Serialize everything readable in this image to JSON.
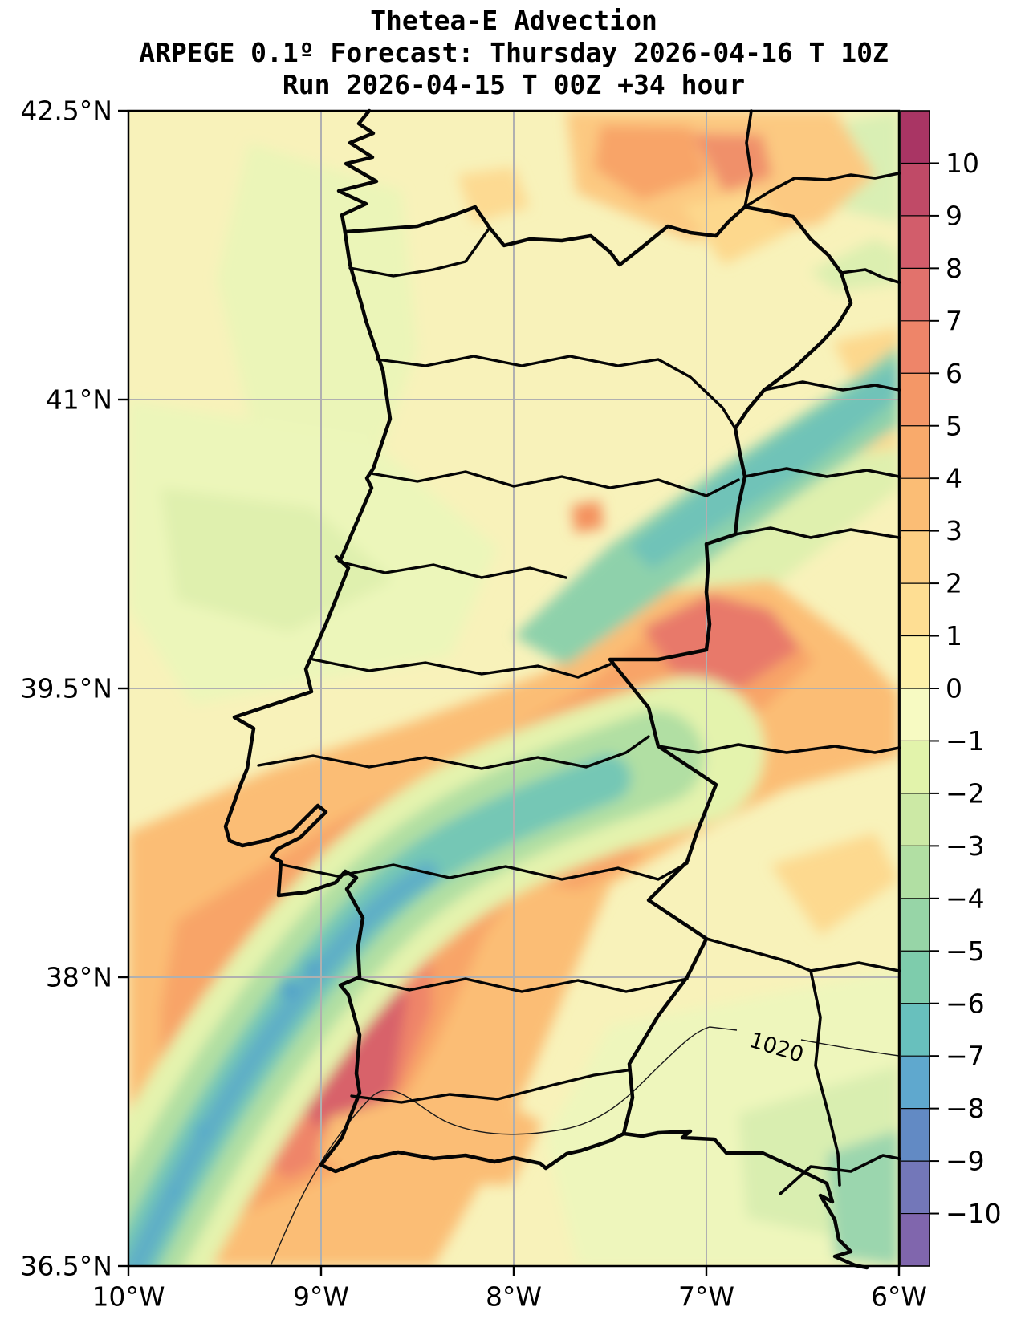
{
  "title": {
    "line1": "Thetea-E Advection",
    "line2": "ARPEGE 0.1º Forecast: Thursday 2026-04-16 T 10Z",
    "line3": "Run 2026-04-15 T 00Z +34 hour"
  },
  "axes": {
    "lat": {
      "labels": [
        "42.5°N",
        "41°N",
        "39.5°N",
        "38°N",
        "36.5°N"
      ],
      "values": [
        42.5,
        41,
        39.5,
        38,
        36.5
      ],
      "gridline_values": [
        41,
        39.5,
        38
      ]
    },
    "lon": {
      "labels": [
        "10°W",
        "9°W",
        "8°W",
        "7°W",
        "6°W"
      ],
      "values": [
        10,
        9,
        8,
        7,
        6
      ],
      "gridline_values": [
        9,
        8,
        7
      ]
    }
  },
  "colorbar": {
    "tick_labels": [
      "10",
      "9",
      "8",
      "7",
      "6",
      "5",
      "4",
      "3",
      "2",
      "1",
      "0",
      "−1",
      "−2",
      "−3",
      "−4",
      "−5",
      "−6",
      "−7",
      "−8",
      "−9",
      "−10"
    ],
    "tick_values": [
      10,
      9,
      8,
      7,
      6,
      5,
      4,
      3,
      2,
      1,
      0,
      -1,
      -2,
      -3,
      -4,
      -5,
      -6,
      -7,
      -8,
      -9,
      -10
    ],
    "colors_low_to_high": [
      "#8066ad",
      "#7377b9",
      "#628ac4",
      "#5fa8ce",
      "#68c0bd",
      "#7eccac",
      "#97d5a7",
      "#b1dfa3",
      "#cce9a5",
      "#e2f3ab",
      "#f7fac2",
      "#fdf0aa",
      "#fede93",
      "#fdcf83",
      "#fbbd75",
      "#f9aa6b",
      "#f49767",
      "#ee8569",
      "#e2726c",
      "#d25d6b",
      "#c04a67",
      "#a93564"
    ]
  },
  "map": {
    "isobar_label": "1020",
    "gridline_color": "#b0b0b0",
    "coast_color": "#000000"
  },
  "chart_data": {
    "type": "heatmap",
    "subtype": "filled_contour_map",
    "variable": "Theta-E Advection",
    "model": "ARPEGE 0.1º",
    "valid_time": "Thursday 2026-04-16 T 10Z",
    "run_time": "2026-04-15 T 00Z",
    "lead_hours": 34,
    "region": "Portugal and western Iberia",
    "extent": {
      "lon_deg_west": [
        10,
        6
      ],
      "lat_deg_north": [
        36.5,
        42.5
      ]
    },
    "levels": [
      -10,
      -9,
      -8,
      -7,
      -6,
      -5,
      -4,
      -3,
      -2,
      -1,
      0,
      1,
      2,
      3,
      4,
      5,
      6,
      7,
      8,
      9,
      10
    ],
    "colormap": "Spectral reversed, 22 discrete bands",
    "grid_on": true,
    "legend_position": "right colorbar",
    "isobar": {
      "value": 1020,
      "approx_path_lon_lat": [
        [
          -9.26,
          36.5
        ],
        [
          -8.75,
          37.37
        ],
        [
          -7.75,
          37.21
        ],
        [
          -6.98,
          37.74
        ],
        [
          -6.0,
          37.6
        ]
      ]
    },
    "features": [
      {
        "name": "warm_advection_band_central",
        "sign": "positive",
        "peak_band": "+7 to +9",
        "description": "SW–NE band of strong positive theta-e advection from the coast near Lisbon across central-eastern Portugal into Spain",
        "core_lon_lat": [
          [
            -6.55,
            39.45
          ],
          [
            -7.6,
            38.9
          ]
        ]
      },
      {
        "name": "warm_advection_core_south",
        "sign": "positive",
        "peak_band": "+8 to +9",
        "description": "Strong positive core along the Alentejo coast around Sines",
        "core_lon_lat": [
          [
            -8.85,
            37.4
          ]
        ]
      },
      {
        "name": "cold_advection_band_southwest",
        "sign": "negative",
        "peak_band": "−6 to −8",
        "description": "Narrow SW–NE band of negative theta-e advection from offshore SW through the Setúbal/Lisbon coast, weakening inland",
        "axis_lon_lat": [
          [
            -10,
            36.6
          ],
          [
            -8.9,
            37.9
          ],
          [
            -7.6,
            39.1
          ]
        ]
      },
      {
        "name": "cold_advection_band_northeast",
        "sign": "negative",
        "peak_band": "−4 to −7",
        "description": "Band of negative theta-e advection across the NE quadrant toward the Spanish border",
        "axis_lon_lat": [
          [
            -7.8,
            39.9
          ],
          [
            -6.0,
            40.8
          ]
        ]
      },
      {
        "name": "warm_patches_north",
        "sign": "positive",
        "peak_band": "+4 to +6",
        "description": "Positive patches along the northern edge near 42.2–42.5N, 6.5–7.5W"
      },
      {
        "name": "background",
        "sign": "mixed",
        "peak_band": "−2 to +2",
        "description": "Pale yellow/green background over most of the domain"
      }
    ]
  }
}
